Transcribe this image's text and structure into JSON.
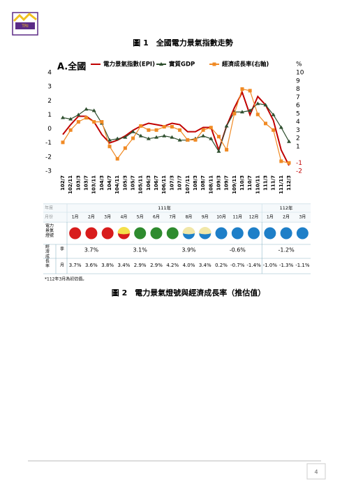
{
  "figure1_caption": "圖 1　全國電力景氣指數走勢",
  "chart_data": {
    "type": "line",
    "title": "A.全國",
    "y2_unit": "%",
    "grid": false,
    "categories": [
      "102/7",
      "102/11",
      "103/3",
      "103/7",
      "103/11",
      "104/3",
      "104/7",
      "104/11",
      "105/3",
      "105/7",
      "105/11",
      "106/3",
      "106/7",
      "106/11",
      "107/3",
      "107/7",
      "107/11",
      "108/3",
      "108/7",
      "108/11",
      "109/3",
      "109/7",
      "109/11",
      "110/3",
      "110/7",
      "110/11",
      "111/3",
      "111/7",
      "111/11",
      "112/3"
    ],
    "series": [
      {
        "name": "電力景氣指數(EPI)",
        "color": "#c00000",
        "marker": "none",
        "values": [
          -0.4,
          0.3,
          0.9,
          0.9,
          0.5,
          -0.4,
          -1.0,
          -0.8,
          -0.5,
          -0.1,
          0.2,
          0.4,
          0.3,
          0.2,
          0.4,
          0.3,
          -0.2,
          -0.2,
          0.1,
          0.1,
          -1.5,
          0.2,
          1.5,
          2.6,
          1.0,
          2.3,
          1.7,
          0.6,
          -1.5,
          -2.6
        ]
      },
      {
        "name": "實質GDP",
        "color": "#2f4f2f",
        "marker": "triangle",
        "values": [
          0.8,
          0.7,
          1.0,
          1.4,
          1.3,
          0.4,
          -0.8,
          -0.7,
          -0.6,
          -0.2,
          -0.5,
          -0.7,
          -0.6,
          -0.5,
          -0.6,
          -0.8,
          -0.8,
          -0.7,
          -0.5,
          -0.7,
          -1.6,
          0.2,
          1.2,
          1.2,
          1.3,
          1.8,
          1.7,
          1.0,
          0.1,
          -0.9
        ]
      },
      {
        "name": "經濟成長率(右軸)",
        "color": "#f08a24",
        "marker": "square",
        "axis": "y2",
        "values": [
          1.5,
          3.0,
          4.0,
          4.5,
          4.0,
          4.0,
          1.0,
          -0.5,
          0.8,
          2.0,
          3.5,
          3.0,
          3.0,
          3.4,
          3.4,
          3.0,
          1.8,
          1.8,
          3.0,
          3.3,
          2.2,
          0.6,
          5.0,
          8.0,
          7.8,
          4.9,
          3.8,
          3.0,
          -0.8,
          -1.0
        ]
      }
    ],
    "ylim": [
      -3,
      4
    ],
    "yticks": [
      4,
      3,
      2,
      1,
      0,
      -1,
      -2,
      -3
    ],
    "y2lim": [
      -2,
      10
    ],
    "y2ticks": [
      10,
      9,
      8,
      7,
      6,
      5,
      4,
      3,
      2,
      1,
      -1,
      -2
    ]
  },
  "table": {
    "year_header": "年度",
    "years": [
      "111年",
      "112年"
    ],
    "month_header": "月份",
    "months": [
      "1月",
      "2月",
      "3月",
      "4月",
      "5月",
      "6月",
      "7月",
      "8月",
      "9月",
      "10月",
      "11月",
      "12月",
      "1月",
      "2月",
      "3月"
    ],
    "signal_header": "電力景氣燈號",
    "growth_header": "經濟成長率",
    "quarter_header": "季",
    "quarterly": [
      "3.7%",
      "3.1%",
      "3.9%",
      "-0.6%",
      "-1.2%"
    ],
    "month_row_header": "月",
    "monthly": [
      "3.7%",
      "3.6%",
      "3.8%",
      "3.4%",
      "2.9%",
      "2.9%",
      "4.2%",
      "4.0%",
      "3.4%",
      "0.2%",
      "-0.7%",
      "-1.4%",
      "-1.0%",
      "-1.3%",
      "-1.1%"
    ]
  },
  "note": "*112年3月為初估值。",
  "figure2_caption": "圖 2　電力景氣燈號與經濟成長率（推估值）",
  "page_number": "4"
}
